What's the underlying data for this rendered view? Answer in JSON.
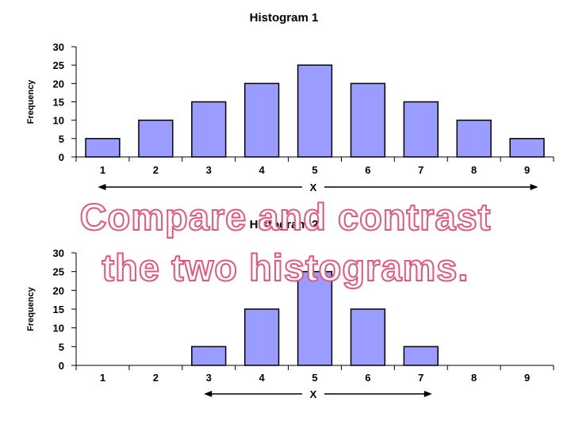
{
  "chart_data": [
    {
      "type": "bar",
      "title": "Histogram 1",
      "ylabel": "Frequency",
      "xlabel": "X",
      "categories": [
        "1",
        "2",
        "3",
        "4",
        "5",
        "6",
        "7",
        "8",
        "9"
      ],
      "values": [
        5,
        10,
        15,
        20,
        25,
        20,
        15,
        10,
        5
      ],
      "ylim": [
        0,
        30
      ],
      "yticks": [
        "0",
        "5",
        "10",
        "15",
        "20",
        "25",
        "30"
      ],
      "bar_color": "#9b9cff",
      "range_arrow": [
        "1",
        "9"
      ]
    },
    {
      "type": "bar",
      "title": "Histogram 2",
      "ylabel": "Frequency",
      "xlabel": "X",
      "categories": [
        "1",
        "2",
        "3",
        "4",
        "5",
        "6",
        "7",
        "8",
        "9"
      ],
      "values": [
        0,
        0,
        5,
        15,
        25,
        15,
        5,
        0,
        0
      ],
      "ylim": [
        0,
        30
      ],
      "yticks": [
        "0",
        "5",
        "10",
        "15",
        "20",
        "25",
        "30"
      ],
      "bar_color": "#9b9cff",
      "range_arrow": [
        "3",
        "7"
      ]
    }
  ],
  "overlay": {
    "line1": "Compare and contrast",
    "line2": "the two histograms."
  },
  "colors": {
    "overlay_text": "#ffffff",
    "overlay_outline": "#e8557a",
    "axis": "#000000"
  }
}
